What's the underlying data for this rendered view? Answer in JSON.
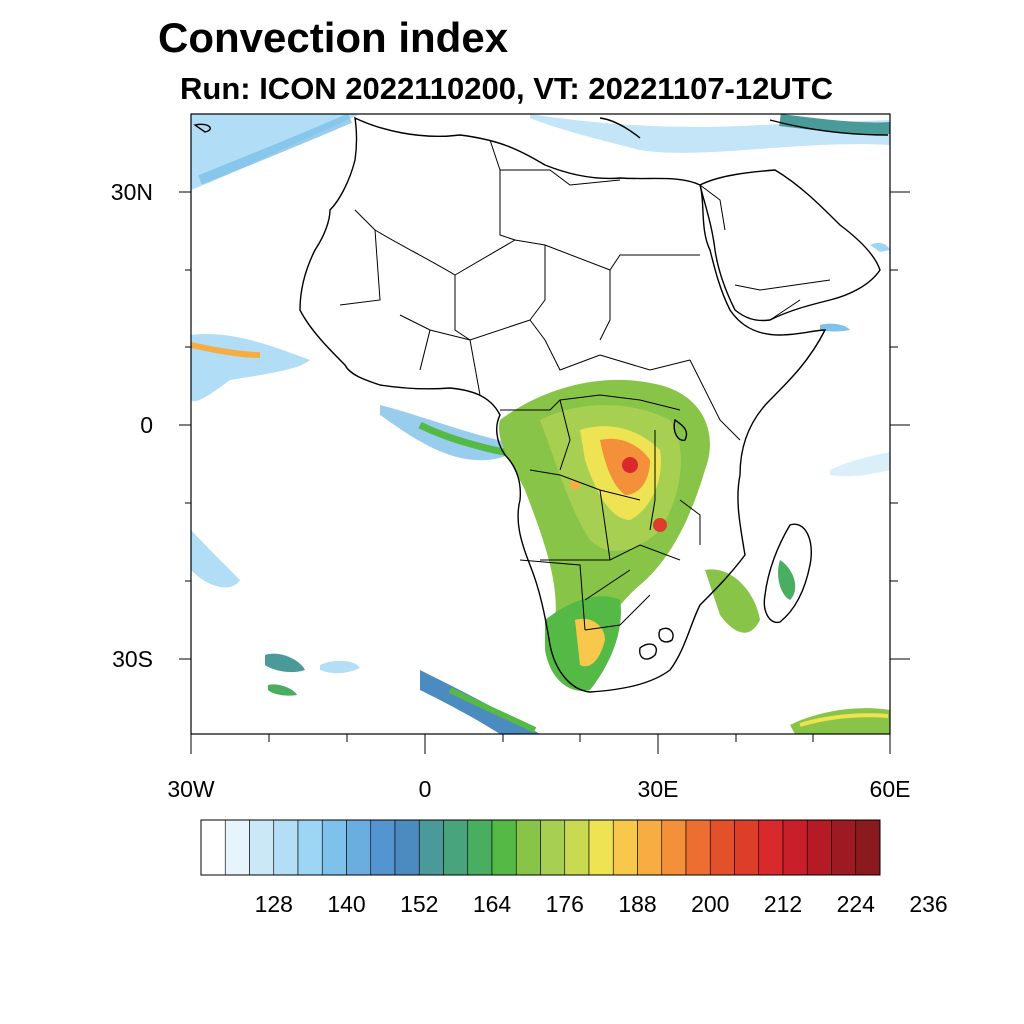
{
  "title": "Convection index",
  "subtitle": "Run: ICON 2022110200,  VT: 20221107-12UTC",
  "map": {
    "lon_range": [
      -30,
      60
    ],
    "lat_range": [
      -40,
      40
    ],
    "lat_labels": [
      "30N",
      "0",
      "30S"
    ],
    "lon_labels": [
      "30W",
      "0",
      "30E",
      "60E"
    ]
  },
  "colorbar": {
    "colors": [
      "#ffffff",
      "#e8f4fb",
      "#cbe8f6",
      "#b4def5",
      "#9dd6f4",
      "#7ec1ea",
      "#6aaee0",
      "#5495d1",
      "#4b8bc0",
      "#4a9a9a",
      "#47a47c",
      "#49ae5f",
      "#55b946",
      "#88c447",
      "#a7cf52",
      "#c9d952",
      "#eee352",
      "#f7c84c",
      "#f7ad42",
      "#f4903a",
      "#ec6f31",
      "#e3512b",
      "#dc3e29",
      "#d82a2c",
      "#c81f2a",
      "#b41b25",
      "#9e1a22",
      "#8a1a1e"
    ],
    "tick_labels": [
      "128",
      "140",
      "152",
      "164",
      "176",
      "188",
      "200",
      "212",
      "224",
      "236"
    ]
  }
}
